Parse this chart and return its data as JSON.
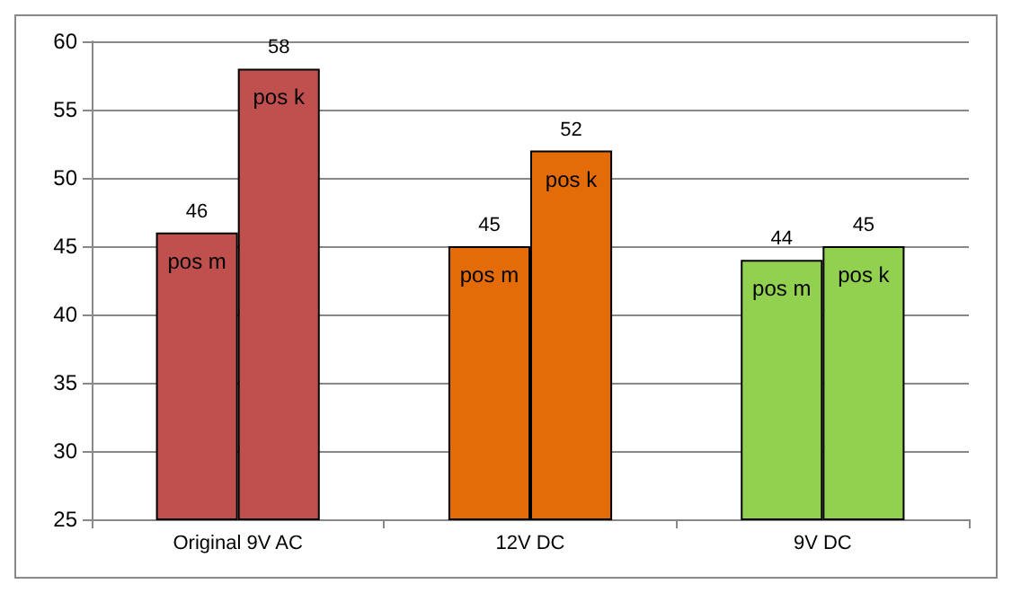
{
  "chart_data": {
    "type": "bar",
    "categories": [
      "Original 9V AC",
      "12V DC",
      "9V DC"
    ],
    "series": [
      {
        "name": "pos m",
        "colors": [
          "#c0504d",
          "#e36c09",
          "#92d050"
        ],
        "values": [
          46,
          45,
          44
        ]
      },
      {
        "name": "pos k",
        "colors": [
          "#c0504d",
          "#e36c09",
          "#92d050"
        ],
        "values": [
          58,
          52,
          45
        ]
      }
    ],
    "ylim": [
      25,
      60
    ],
    "yticks": [
      25,
      30,
      35,
      40,
      45,
      50,
      55,
      60
    ],
    "grid": "y",
    "legend": false,
    "data_labels": true
  }
}
